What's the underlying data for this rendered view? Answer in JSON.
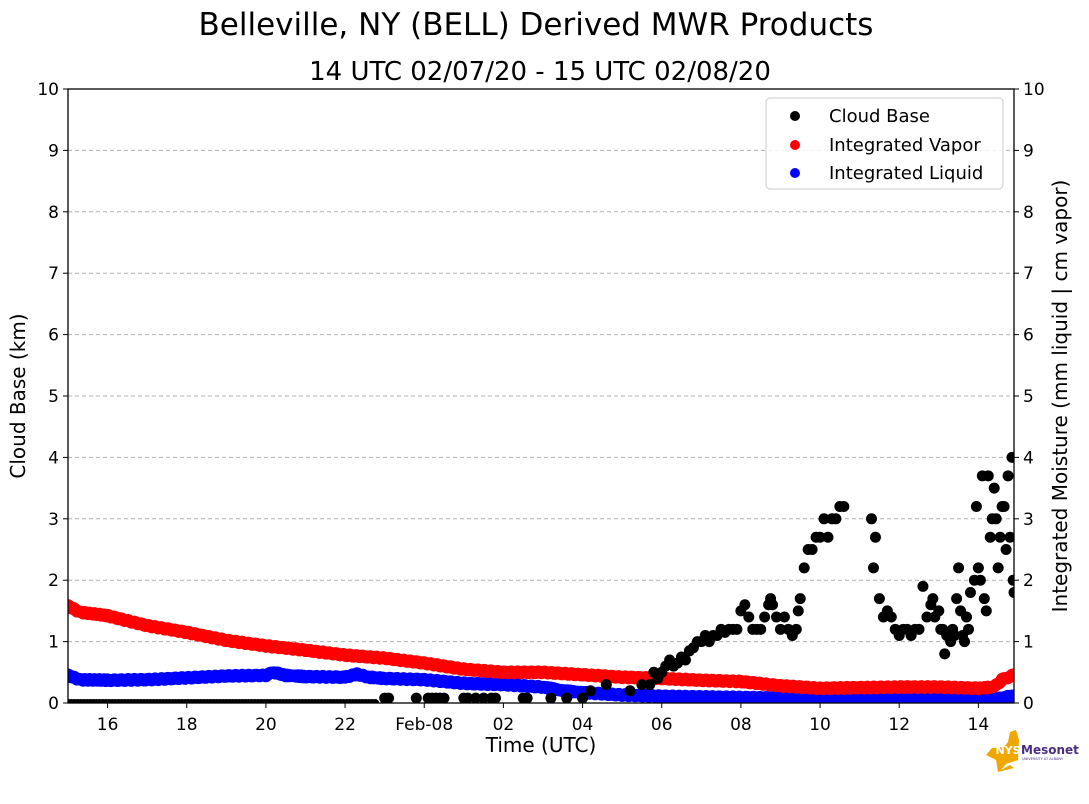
{
  "chart_data": {
    "type": "scatter",
    "title": "Belleville, NY (BELL) Derived MWR Products",
    "subtitle": "14 UTC 02/07/20 - 15 UTC 02/08/20",
    "xlabel": "Time (UTC)",
    "ylabel": "Cloud Base (km)",
    "ylabel_right": "Integrated Moisture (mm liquid | cm vapor)",
    "x_unit": "hours since 00 UTC 02/07/20",
    "xlim": [
      15.0,
      38.9
    ],
    "ylim": [
      0,
      10
    ],
    "ylim_right": [
      0,
      10
    ],
    "grid": "horizontal dashed",
    "legend_position": "top-right",
    "x_ticks": [
      {
        "value": 16,
        "label": "16"
      },
      {
        "value": 18,
        "label": "18"
      },
      {
        "value": 20,
        "label": "20"
      },
      {
        "value": 22,
        "label": "22"
      },
      {
        "value": 24,
        "label": "Feb-08"
      },
      {
        "value": 26,
        "label": "02"
      },
      {
        "value": 28,
        "label": "04"
      },
      {
        "value": 30,
        "label": "06"
      },
      {
        "value": 32,
        "label": "08"
      },
      {
        "value": 34,
        "label": "10"
      },
      {
        "value": 36,
        "label": "12"
      },
      {
        "value": 38,
        "label": "14"
      }
    ],
    "y_ticks": [
      "0",
      "1",
      "2",
      "3",
      "4",
      "5",
      "6",
      "7",
      "8",
      "9",
      "10"
    ],
    "series": [
      {
        "name": "Cloud Base",
        "color": "#000000",
        "points": [
          [
            15.0,
            0
          ],
          [
            16,
            0
          ],
          [
            17,
            0
          ],
          [
            18,
            0
          ],
          [
            19,
            0
          ],
          [
            20,
            0
          ],
          [
            21,
            0
          ],
          [
            22,
            0
          ],
          [
            22.8,
            0
          ],
          [
            23.0,
            0.08
          ],
          [
            23.1,
            0.08
          ],
          [
            23.8,
            0.08
          ],
          [
            24.1,
            0.08
          ],
          [
            24.2,
            0.08
          ],
          [
            24.3,
            0.08
          ],
          [
            24.4,
            0.08
          ],
          [
            24.5,
            0.08
          ],
          [
            25.0,
            0.08
          ],
          [
            25.1,
            0.08
          ],
          [
            25.3,
            0.08
          ],
          [
            25.5,
            0.08
          ],
          [
            25.7,
            0.08
          ],
          [
            25.8,
            0.08
          ],
          [
            26.5,
            0.08
          ],
          [
            26.6,
            0.08
          ],
          [
            27.2,
            0.08
          ],
          [
            27.6,
            0.08
          ],
          [
            28.0,
            0.08
          ],
          [
            28.2,
            0.2
          ],
          [
            28.6,
            0.3
          ],
          [
            29.2,
            0.2
          ],
          [
            29.5,
            0.3
          ],
          [
            29.7,
            0.3
          ],
          [
            29.8,
            0.5
          ],
          [
            29.9,
            0.4
          ],
          [
            30.0,
            0.5
          ],
          [
            30.1,
            0.6
          ],
          [
            30.2,
            0.7
          ],
          [
            30.3,
            0.6
          ],
          [
            30.4,
            0.65
          ],
          [
            30.5,
            0.75
          ],
          [
            30.6,
            0.7
          ],
          [
            30.7,
            0.85
          ],
          [
            30.8,
            0.9
          ],
          [
            30.9,
            1.0
          ],
          [
            31.0,
            1.0
          ],
          [
            31.1,
            1.1
          ],
          [
            31.2,
            1.0
          ],
          [
            31.3,
            1.1
          ],
          [
            31.4,
            1.1
          ],
          [
            31.5,
            1.2
          ],
          [
            31.6,
            1.15
          ],
          [
            31.7,
            1.2
          ],
          [
            31.8,
            1.2
          ],
          [
            31.9,
            1.2
          ],
          [
            32.0,
            1.5
          ],
          [
            32.1,
            1.6
          ],
          [
            32.2,
            1.4
          ],
          [
            32.3,
            1.2
          ],
          [
            32.4,
            1.2
          ],
          [
            32.5,
            1.2
          ],
          [
            32.6,
            1.4
          ],
          [
            32.7,
            1.6
          ],
          [
            32.75,
            1.7
          ],
          [
            32.8,
            1.6
          ],
          [
            32.9,
            1.4
          ],
          [
            33.0,
            1.2
          ],
          [
            33.1,
            1.4
          ],
          [
            33.2,
            1.2
          ],
          [
            33.3,
            1.1
          ],
          [
            33.4,
            1.2
          ],
          [
            33.45,
            1.5
          ],
          [
            33.5,
            1.7
          ],
          [
            33.6,
            2.2
          ],
          [
            33.7,
            2.5
          ],
          [
            33.8,
            2.5
          ],
          [
            33.9,
            2.7
          ],
          [
            34.0,
            2.7
          ],
          [
            34.1,
            3.0
          ],
          [
            34.2,
            2.7
          ],
          [
            34.3,
            3.0
          ],
          [
            34.4,
            3.0
          ],
          [
            34.5,
            3.2
          ],
          [
            34.6,
            3.2
          ],
          [
            35.3,
            3.0
          ],
          [
            35.35,
            2.2
          ],
          [
            35.4,
            2.7
          ],
          [
            35.5,
            1.7
          ],
          [
            35.6,
            1.4
          ],
          [
            35.7,
            1.5
          ],
          [
            35.8,
            1.4
          ],
          [
            35.9,
            1.2
          ],
          [
            36.0,
            1.1
          ],
          [
            36.1,
            1.2
          ],
          [
            36.2,
            1.2
          ],
          [
            36.3,
            1.1
          ],
          [
            36.4,
            1.2
          ],
          [
            36.5,
            1.2
          ],
          [
            36.6,
            1.9
          ],
          [
            36.7,
            1.4
          ],
          [
            36.8,
            1.6
          ],
          [
            36.85,
            1.7
          ],
          [
            36.9,
            1.4
          ],
          [
            37.0,
            1.5
          ],
          [
            37.05,
            1.2
          ],
          [
            37.1,
            1.2
          ],
          [
            37.15,
            0.8
          ],
          [
            37.2,
            1.1
          ],
          [
            37.3,
            1.0
          ],
          [
            37.35,
            1.2
          ],
          [
            37.4,
            1.1
          ],
          [
            37.45,
            1.7
          ],
          [
            37.5,
            2.2
          ],
          [
            37.55,
            1.5
          ],
          [
            37.6,
            1.1
          ],
          [
            37.65,
            1.0
          ],
          [
            37.7,
            1.4
          ],
          [
            37.75,
            1.2
          ],
          [
            37.8,
            1.8
          ],
          [
            37.9,
            2.0
          ],
          [
            37.95,
            3.2
          ],
          [
            38.0,
            2.2
          ],
          [
            38.05,
            2.0
          ],
          [
            38.1,
            3.7
          ],
          [
            38.15,
            1.7
          ],
          [
            38.2,
            1.5
          ],
          [
            38.25,
            3.7
          ],
          [
            38.3,
            2.7
          ],
          [
            38.35,
            3.0
          ],
          [
            38.4,
            3.5
          ],
          [
            38.45,
            3.0
          ],
          [
            38.5,
            2.2
          ],
          [
            38.55,
            2.7
          ],
          [
            38.6,
            3.2
          ],
          [
            38.65,
            3.2
          ],
          [
            38.7,
            2.5
          ],
          [
            38.75,
            3.7
          ],
          [
            38.8,
            2.7
          ],
          [
            38.85,
            4.0
          ],
          [
            38.88,
            2.0
          ],
          [
            38.9,
            1.8
          ]
        ]
      },
      {
        "name": "Integrated Vapor",
        "color": "#ff0000",
        "points": [
          [
            15.0,
            1.58
          ],
          [
            15.3,
            1.48
          ],
          [
            16.0,
            1.42
          ],
          [
            17.0,
            1.26
          ],
          [
            18.0,
            1.15
          ],
          [
            19.0,
            1.02
          ],
          [
            20.0,
            0.93
          ],
          [
            21.0,
            0.86
          ],
          [
            22.0,
            0.78
          ],
          [
            23.0,
            0.73
          ],
          [
            24.0,
            0.65
          ],
          [
            25.0,
            0.55
          ],
          [
            26.0,
            0.5
          ],
          [
            27.0,
            0.5
          ],
          [
            28.0,
            0.46
          ],
          [
            29.0,
            0.42
          ],
          [
            30.0,
            0.4
          ],
          [
            31.0,
            0.37
          ],
          [
            32.0,
            0.35
          ],
          [
            33.0,
            0.28
          ],
          [
            34.0,
            0.24
          ],
          [
            35.0,
            0.25
          ],
          [
            36.0,
            0.26
          ],
          [
            37.0,
            0.26
          ],
          [
            38.0,
            0.24
          ],
          [
            38.4,
            0.26
          ],
          [
            38.6,
            0.38
          ],
          [
            38.9,
            0.46
          ]
        ]
      },
      {
        "name": "Integrated Liquid",
        "color": "#0000ff",
        "points": [
          [
            15.0,
            0.45
          ],
          [
            15.3,
            0.38
          ],
          [
            16.0,
            0.37
          ],
          [
            17.0,
            0.38
          ],
          [
            18.0,
            0.41
          ],
          [
            19.0,
            0.44
          ],
          [
            20.0,
            0.45
          ],
          [
            20.2,
            0.5
          ],
          [
            20.5,
            0.45
          ],
          [
            21.0,
            0.43
          ],
          [
            22.0,
            0.42
          ],
          [
            22.3,
            0.47
          ],
          [
            22.6,
            0.42
          ],
          [
            23.0,
            0.4
          ],
          [
            24.0,
            0.38
          ],
          [
            25.0,
            0.32
          ],
          [
            26.0,
            0.3
          ],
          [
            27.0,
            0.26
          ],
          [
            27.5,
            0.2
          ],
          [
            28.0,
            0.17
          ],
          [
            29.0,
            0.13
          ],
          [
            30.0,
            0.11
          ],
          [
            31.0,
            0.1
          ],
          [
            32.0,
            0.09
          ],
          [
            33.0,
            0.08
          ],
          [
            34.0,
            0.07
          ],
          [
            35.0,
            0.08
          ],
          [
            36.0,
            0.09
          ],
          [
            37.0,
            0.08
          ],
          [
            38.0,
            0.07
          ],
          [
            38.5,
            0.07
          ],
          [
            38.9,
            0.12
          ]
        ]
      }
    ]
  },
  "logo": {
    "text1": "NYS",
    "text2": "Mesonet",
    "text3": "UNIVERSITY AT ALBANY",
    "color_state": "#f0a800",
    "color_text": "#4b2e83"
  }
}
